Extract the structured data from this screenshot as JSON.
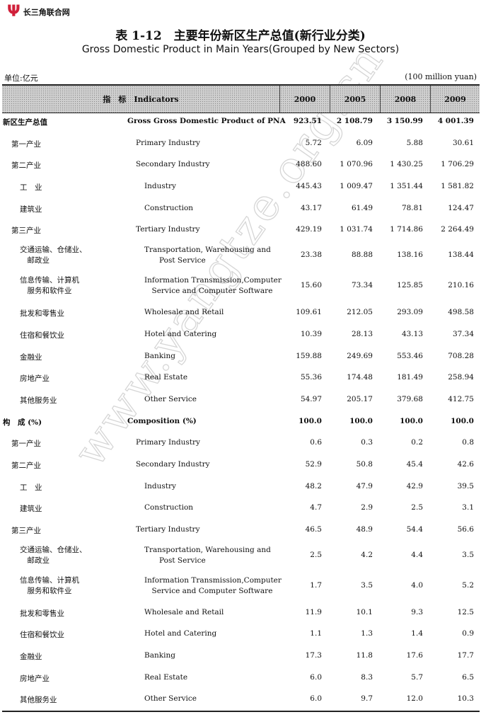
{
  "logo": {
    "mark": "Ψ",
    "text": "长三角联合网"
  },
  "watermark": "www.yangtze.org.cn",
  "title_zh": "表 1-12　主要年份新区生产总值(新行业分类)",
  "title_en": "Gross Domestic Product in Main Years(Grouped by New Sectors)",
  "unit_zh": "单位:亿元",
  "unit_en": "(100 million yuan)",
  "header": {
    "indicator": "指　标　Indicators",
    "years": [
      "2000",
      "2005",
      "2008",
      "2009"
    ]
  },
  "rows": [
    {
      "zh": [
        "新区生产总值"
      ],
      "en": [
        "Gross Gross Domestic Product of PNA"
      ],
      "level": 0,
      "bold": true,
      "values": [
        "923.51",
        "2 108.79",
        "3 150.99",
        "4 001.39"
      ]
    },
    {
      "zh": [
        "第一产业"
      ],
      "en": [
        "Primary Industry"
      ],
      "level": 1,
      "values": [
        "5.72",
        "6.09",
        "5.88",
        "30.61"
      ]
    },
    {
      "zh": [
        "第二产业"
      ],
      "en": [
        "Secondary Industry"
      ],
      "level": 1,
      "values": [
        "488.60",
        "1 070.96",
        "1 430.25",
        "1 706.29"
      ]
    },
    {
      "zh": [
        "工　业"
      ],
      "en": [
        "Industry"
      ],
      "level": 2,
      "values": [
        "445.43",
        "1 009.47",
        "1 351.44",
        "1 581.82"
      ]
    },
    {
      "zh": [
        "建筑业"
      ],
      "en": [
        "Construction"
      ],
      "level": 2,
      "values": [
        "43.17",
        "61.49",
        "78.81",
        "124.47"
      ]
    },
    {
      "zh": [
        "第三产业"
      ],
      "en": [
        "Tertiary Industry"
      ],
      "level": 1,
      "values": [
        "429.19",
        "1 031.74",
        "1 714.86",
        "2 264.49"
      ]
    },
    {
      "zh": [
        "交通运输、仓储业、",
        "　邮政业"
      ],
      "en": [
        "Transportation, Warehousing and",
        "　　Post Service"
      ],
      "level": 2,
      "values": [
        "23.38",
        "88.88",
        "138.16",
        "138.44"
      ]
    },
    {
      "zh": [
        "信息传输、计算机",
        "　服务和软件业"
      ],
      "en": [
        "Information Transmission,Computer",
        "　Service and Computer Software"
      ],
      "level": 2,
      "values": [
        "15.60",
        "73.34",
        "125.85",
        "210.16"
      ]
    },
    {
      "zh": [
        "批发和零售业"
      ],
      "en": [
        "Wholesale and Retail"
      ],
      "level": 2,
      "values": [
        "109.61",
        "212.05",
        "293.09",
        "498.58"
      ]
    },
    {
      "zh": [
        "住宿和餐饮业"
      ],
      "en": [
        "Hotel and Catering"
      ],
      "level": 2,
      "values": [
        "10.39",
        "28.13",
        "43.13",
        "37.34"
      ]
    },
    {
      "zh": [
        "金融业"
      ],
      "en": [
        "Banking"
      ],
      "level": 2,
      "values": [
        "159.88",
        "249.69",
        "553.46",
        "708.28"
      ]
    },
    {
      "zh": [
        "房地产业"
      ],
      "en": [
        "Real Estate"
      ],
      "level": 2,
      "values": [
        "55.36",
        "174.48",
        "181.49",
        "258.94"
      ]
    },
    {
      "zh": [
        "其他服务业"
      ],
      "en": [
        "Other Service"
      ],
      "level": 2,
      "values": [
        "54.97",
        "205.17",
        "379.68",
        "412.75"
      ]
    },
    {
      "zh": [
        "构　成 (%)"
      ],
      "en": [
        "Composition (%)"
      ],
      "level": 0,
      "bold": true,
      "values": [
        "100.0",
        "100.0",
        "100.0",
        "100.0"
      ]
    },
    {
      "zh": [
        "第一产业"
      ],
      "en": [
        "Primary Industry"
      ],
      "level": 1,
      "values": [
        "0.6",
        "0.3",
        "0.2",
        "0.8"
      ]
    },
    {
      "zh": [
        "第二产业"
      ],
      "en": [
        "Secondary Industry"
      ],
      "level": 1,
      "values": [
        "52.9",
        "50.8",
        "45.4",
        "42.6"
      ]
    },
    {
      "zh": [
        "工　业"
      ],
      "en": [
        "Industry"
      ],
      "level": 2,
      "values": [
        "48.2",
        "47.9",
        "42.9",
        "39.5"
      ]
    },
    {
      "zh": [
        "建筑业"
      ],
      "en": [
        "Construction"
      ],
      "level": 2,
      "values": [
        "4.7",
        "2.9",
        "2.5",
        "3.1"
      ]
    },
    {
      "zh": [
        "第三产业"
      ],
      "en": [
        "Tertiary Industry"
      ],
      "level": 1,
      "values": [
        "46.5",
        "48.9",
        "54.4",
        "56.6"
      ]
    },
    {
      "zh": [
        "交通运输、仓储业、",
        "　邮政业"
      ],
      "en": [
        "Transportation, Warehousing and",
        "　　Post Service"
      ],
      "level": 2,
      "values": [
        "2.5",
        "4.2",
        "4.4",
        "3.5"
      ]
    },
    {
      "zh": [
        "信息传输、计算机",
        "　服务和软件业"
      ],
      "en": [
        "Information Transmission,Computer",
        "　Service and Computer Software"
      ],
      "level": 2,
      "values": [
        "1.7",
        "3.5",
        "4.0",
        "5.2"
      ]
    },
    {
      "zh": [
        "批发和零售业"
      ],
      "en": [
        "Wholesale and Retail"
      ],
      "level": 2,
      "values": [
        "11.9",
        "10.1",
        "9.3",
        "12.5"
      ]
    },
    {
      "zh": [
        "住宿和餐饮业"
      ],
      "en": [
        "Hotel and Catering"
      ],
      "level": 2,
      "values": [
        "1.1",
        "1.3",
        "1.4",
        "0.9"
      ]
    },
    {
      "zh": [
        "金融业"
      ],
      "en": [
        "Banking"
      ],
      "level": 2,
      "values": [
        "17.3",
        "11.8",
        "17.6",
        "17.7"
      ]
    },
    {
      "zh": [
        "房地产业"
      ],
      "en": [
        "Real Estate"
      ],
      "level": 2,
      "values": [
        "6.0",
        "8.3",
        "5.7",
        "6.5"
      ]
    },
    {
      "zh": [
        "其他服务业"
      ],
      "en": [
        "Other Service"
      ],
      "level": 2,
      "values": [
        "6.0",
        "9.7",
        "12.0",
        "10.3"
      ]
    }
  ]
}
